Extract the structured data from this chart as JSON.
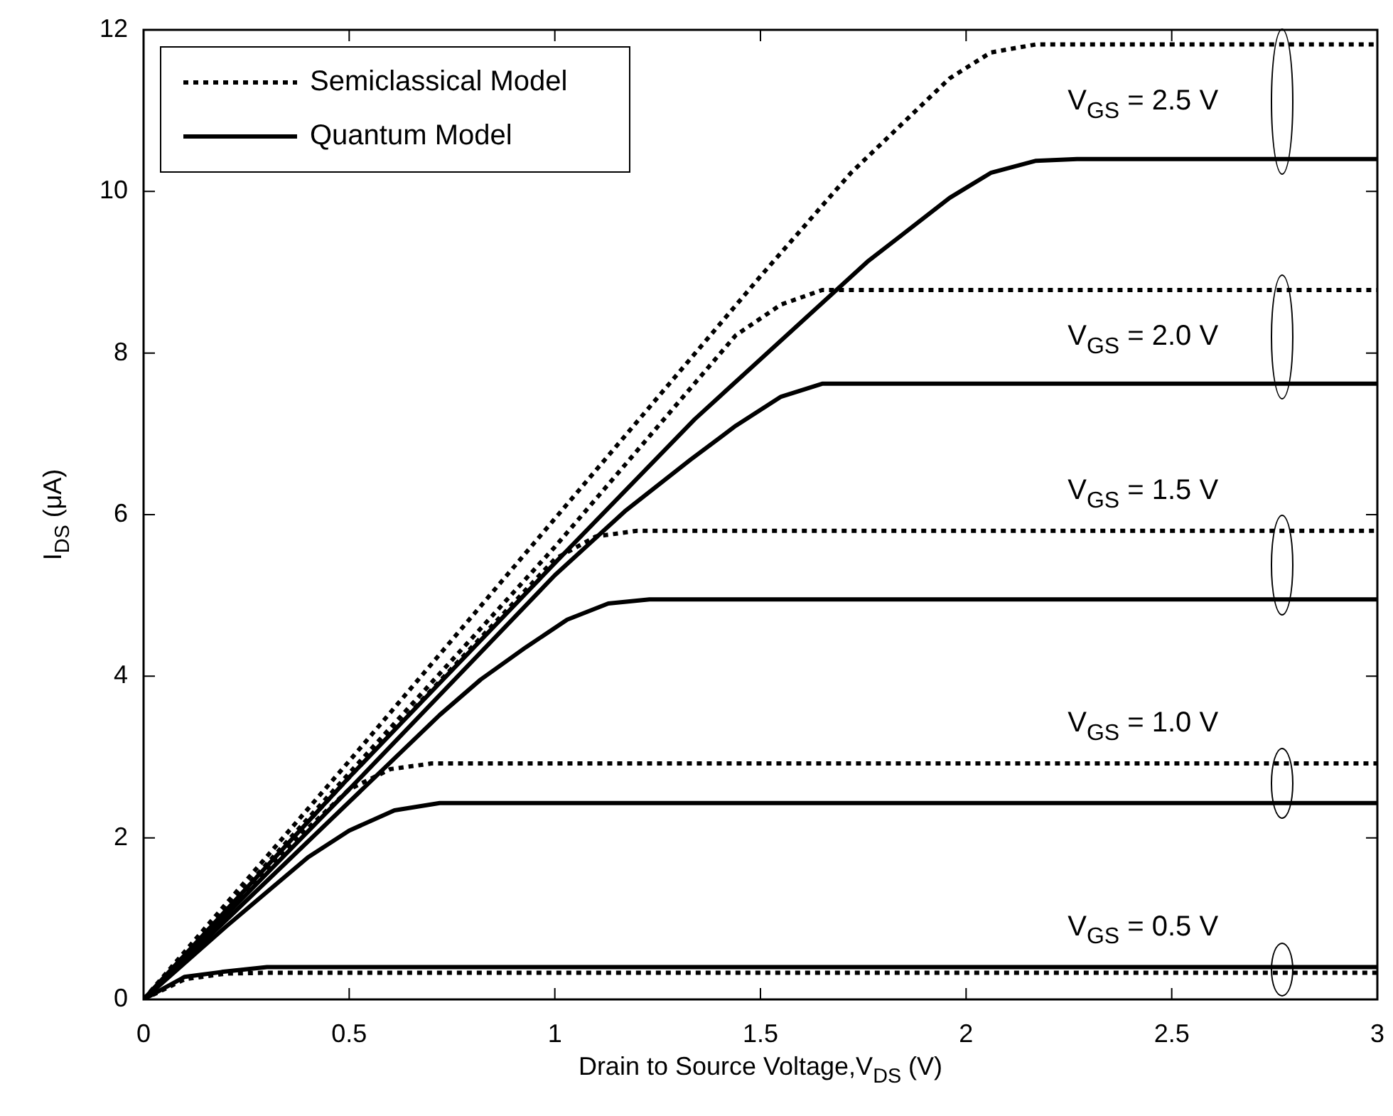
{
  "chart_data": {
    "type": "line",
    "xlabel": "Drain to Source Voltage,V$_{DS}$ (V)",
    "ylabel": "I$_{DS}$ (μA)",
    "xlim": [
      0,
      3
    ],
    "xticks": [
      0,
      0.5,
      1,
      1.5,
      2,
      2.5,
      3
    ],
    "ylim": [
      0,
      12
    ],
    "yticks": [
      0,
      2,
      4,
      6,
      8,
      10,
      12
    ],
    "grid": false,
    "legend": "top left",
    "marker": "none",
    "series": [
      {
        "name": "Semiclassical Model",
        "color": "#000000",
        "line_style": "dotted",
        "x": [
          0,
          0.1,
          0.2,
          0.3,
          3
        ],
        "values": [
          0,
          0.25,
          0.32,
          0.33,
          0.33
        ]
      },
      {
        "name": "Quantum Model",
        "color": "#000000",
        "line_style": "solid",
        "x": [
          0,
          0.1,
          0.19,
          0.3,
          3
        ],
        "values": [
          0,
          0.28,
          0.34,
          0.4,
          0.4
        ]
      },
      {
        "color": "#000000",
        "line_style": "dotted",
        "x": [
          0,
          0.1,
          0.2,
          0.3,
          0.4,
          0.5,
          0.6,
          0.7,
          3
        ],
        "values": [
          0,
          0.55,
          1.1,
          1.62,
          2.12,
          2.6,
          2.85,
          2.92,
          2.92
        ]
      },
      {
        "color": "#000000",
        "line_style": "solid",
        "x": [
          0,
          0.2,
          0.4,
          0.5,
          0.61,
          0.72,
          3
        ],
        "values": [
          0,
          0.9,
          1.76,
          2.09,
          2.34,
          2.43,
          2.43
        ]
      },
      {
        "color": "#000000",
        "line_style": "dotted",
        "x": [
          0,
          0.5,
          1.0,
          1.1,
          1.2,
          3
        ],
        "values": [
          0,
          2.75,
          5.45,
          5.73,
          5.8,
          5.8
        ]
      },
      {
        "color": "#000000",
        "line_style": "solid",
        "x": [
          0,
          0.72,
          0.82,
          0.93,
          1.03,
          1.13,
          1.23,
          3
        ],
        "values": [
          0,
          3.52,
          3.96,
          4.36,
          4.7,
          4.9,
          4.95,
          4.95
        ]
      },
      {
        "color": "#000000",
        "line_style": "dotted",
        "x": [
          0,
          0.5,
          1.0,
          1.44,
          1.55,
          1.65,
          3
        ],
        "values": [
          0,
          2.8,
          5.6,
          8.22,
          8.6,
          8.78,
          8.78
        ]
      },
      {
        "color": "#000000",
        "line_style": "solid",
        "x": [
          0,
          0.5,
          1.0,
          1.17,
          1.33,
          1.44,
          1.55,
          1.65,
          3
        ],
        "values": [
          0,
          2.6,
          5.25,
          6.04,
          6.68,
          7.1,
          7.46,
          7.62,
          7.62
        ]
      },
      {
        "color": "#000000",
        "line_style": "dotted",
        "x": [
          0,
          0.5,
          1.0,
          1.5,
          1.72,
          1.96,
          2.06,
          2.17,
          3
        ],
        "values": [
          0,
          2.95,
          5.95,
          8.95,
          10.23,
          11.4,
          11.72,
          11.82,
          11.82
        ]
      },
      {
        "color": "#000000",
        "line_style": "solid",
        "x": [
          0,
          0.5,
          1.0,
          1.34,
          1.76,
          1.96,
          2.06,
          2.17,
          2.27,
          3
        ],
        "values": [
          0,
          2.75,
          5.4,
          7.18,
          9.13,
          9.92,
          10.23,
          10.38,
          10.4,
          10.4
        ]
      }
    ],
    "annotations": [
      "V$_{GS}$ = 0.5 V",
      "V$_{GS}$ = 1.0 V",
      "V$_{GS}$ = 1.5 V",
      "V$_{GS}$ = 2.0 V",
      "V$_{GS}$ = 2.5 V"
    ]
  }
}
